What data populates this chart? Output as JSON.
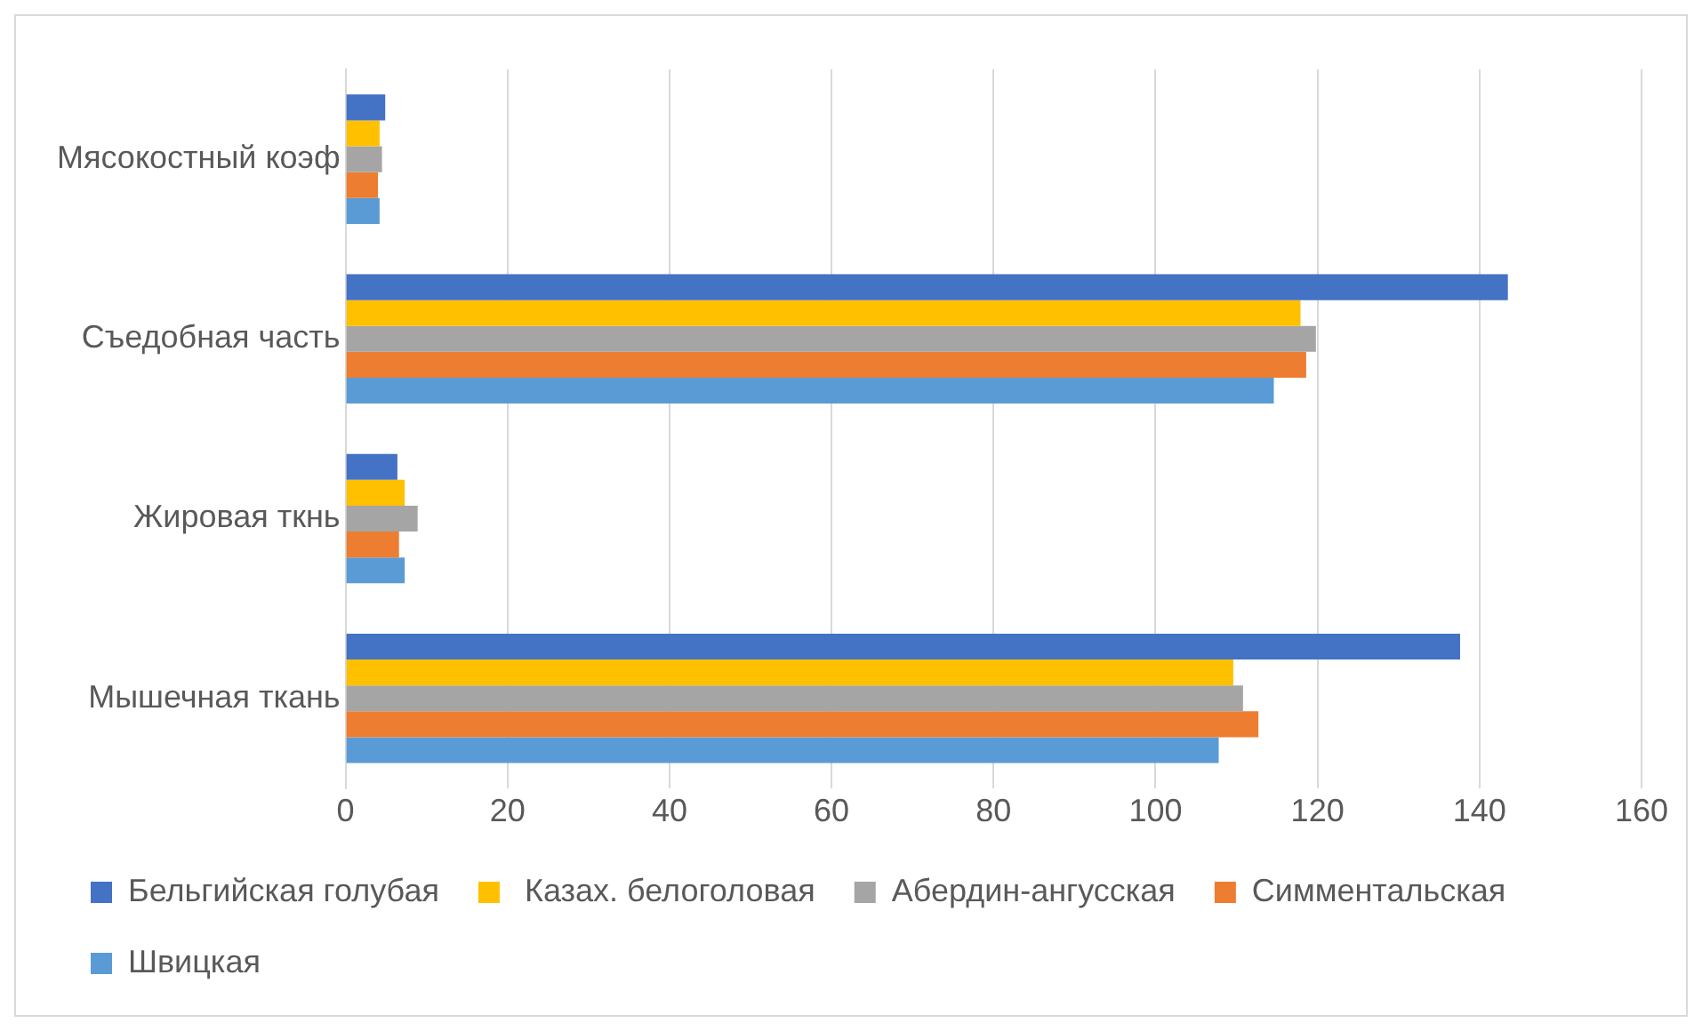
{
  "chart_data": {
    "type": "bar",
    "orientation": "horizontal",
    "categories": [
      "Мясокостный коэф",
      "Съедобная часть",
      "Жировая ткнь",
      "Мышечная ткань"
    ],
    "series": [
      {
        "name": "Бельгийская голубая",
        "color": "#4472c4",
        "values": [
          4.9,
          143.5,
          6.4,
          137.6
        ]
      },
      {
        "name": " Казах. белоголовая",
        "color": "#ffc000",
        "values": [
          4.2,
          117.9,
          7.3,
          109.6
        ]
      },
      {
        "name": "Абердин-ангусская",
        "color": "#a5a5a5",
        "values": [
          4.5,
          119.8,
          8.9,
          110.8
        ]
      },
      {
        "name": "Симментальская",
        "color": "#ed7d31",
        "values": [
          4,
          118.6,
          6.6,
          112.7
        ]
      },
      {
        "name": "Швицкая",
        "color": "#5b9bd5",
        "values": [
          4.2,
          114.6,
          7.3,
          107.8
        ]
      }
    ],
    "xlim": [
      0,
      160
    ],
    "xticks": [
      0,
      20,
      40,
      60,
      80,
      100,
      120,
      140,
      160
    ],
    "grid": "x",
    "legend": "bottom"
  }
}
